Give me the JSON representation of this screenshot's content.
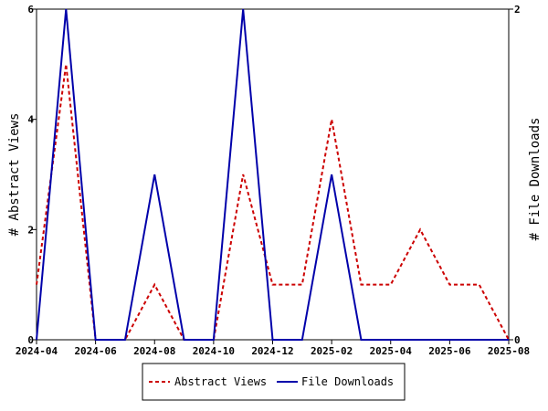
{
  "chart_data": {
    "type": "line",
    "x": [
      "2024-04",
      "2024-05",
      "2024-06",
      "2024-07",
      "2024-08",
      "2024-09",
      "2024-10",
      "2024-11",
      "2024-12",
      "2025-01",
      "2025-02",
      "2025-03",
      "2025-04",
      "2025-05",
      "2025-06",
      "2025-07",
      "2025-08"
    ],
    "x_tick_labels": [
      "2024-04",
      "2024-06",
      "2024-08",
      "2024-10",
      "2024-12",
      "2025-02",
      "2025-04",
      "2025-06",
      "2025-08"
    ],
    "series": [
      {
        "name": "Abstract Views",
        "axis": "left",
        "color": "#cc0000",
        "line_style": "dashed",
        "values": [
          1,
          5,
          0,
          0,
          1,
          0,
          0,
          3,
          1,
          1,
          4,
          1,
          1,
          2,
          1,
          1,
          0
        ]
      },
      {
        "name": "File Downloads",
        "axis": "right",
        "color": "#0000aa",
        "line_style": "solid",
        "values": [
          0,
          2,
          0,
          0,
          1,
          0,
          0,
          2,
          0,
          0,
          1,
          0,
          0,
          0,
          0,
          0,
          0
        ]
      }
    ],
    "y_left": {
      "label": "# Abstract Views",
      "range": [
        0,
        6
      ],
      "ticks": [
        "0",
        "2",
        "4",
        "6"
      ]
    },
    "y_right": {
      "label": "# File Downloads",
      "range": [
        0,
        2
      ],
      "ticks": [
        "0",
        "2"
      ]
    },
    "grid": false,
    "legend": {
      "placement": "bottom-center"
    }
  }
}
